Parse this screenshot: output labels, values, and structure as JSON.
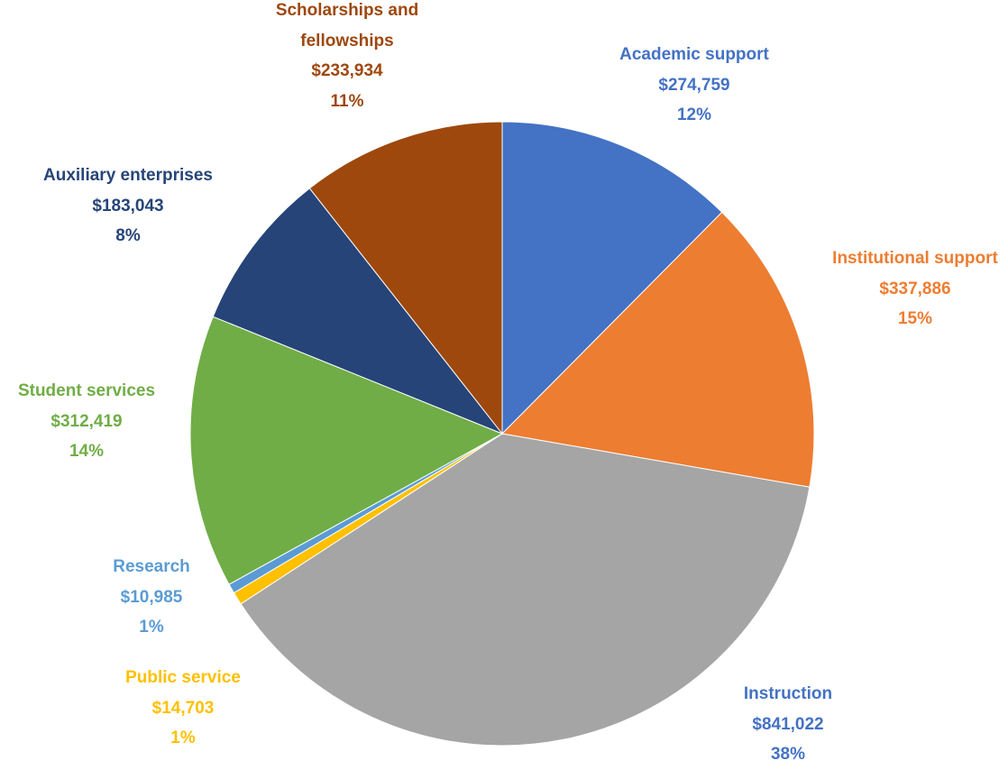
{
  "chart_data": {
    "type": "pie",
    "categories": [
      "Academic support",
      "Institutional support",
      "Instruction",
      "Public service",
      "Research",
      "Student services",
      "Auxiliary enterprises",
      "Scholarships and fellowships"
    ],
    "values": [
      274759,
      337886,
      841022,
      14703,
      10985,
      312419,
      183043,
      233934
    ],
    "value_labels": [
      "$274,759",
      "$337,886",
      "$841,022",
      "$14,703",
      "$10,985",
      "$312,419",
      "$183,043",
      "$233,934"
    ],
    "percent_labels": [
      "12%",
      "15%",
      "38%",
      "1%",
      "1%",
      "14%",
      "8%",
      "11%"
    ],
    "colors": [
      "#4472c4",
      "#ed7d31",
      "#a5a5a5",
      "#ffc000",
      "#5b9bd5",
      "#70ad47",
      "#264478",
      "#9e480e"
    ],
    "label_colors": [
      "#4472c4",
      "#ed7d31",
      "#4472c4",
      "#ffc000",
      "#5b9bd5",
      "#70ad47",
      "#264478",
      "#9e480e"
    ]
  }
}
